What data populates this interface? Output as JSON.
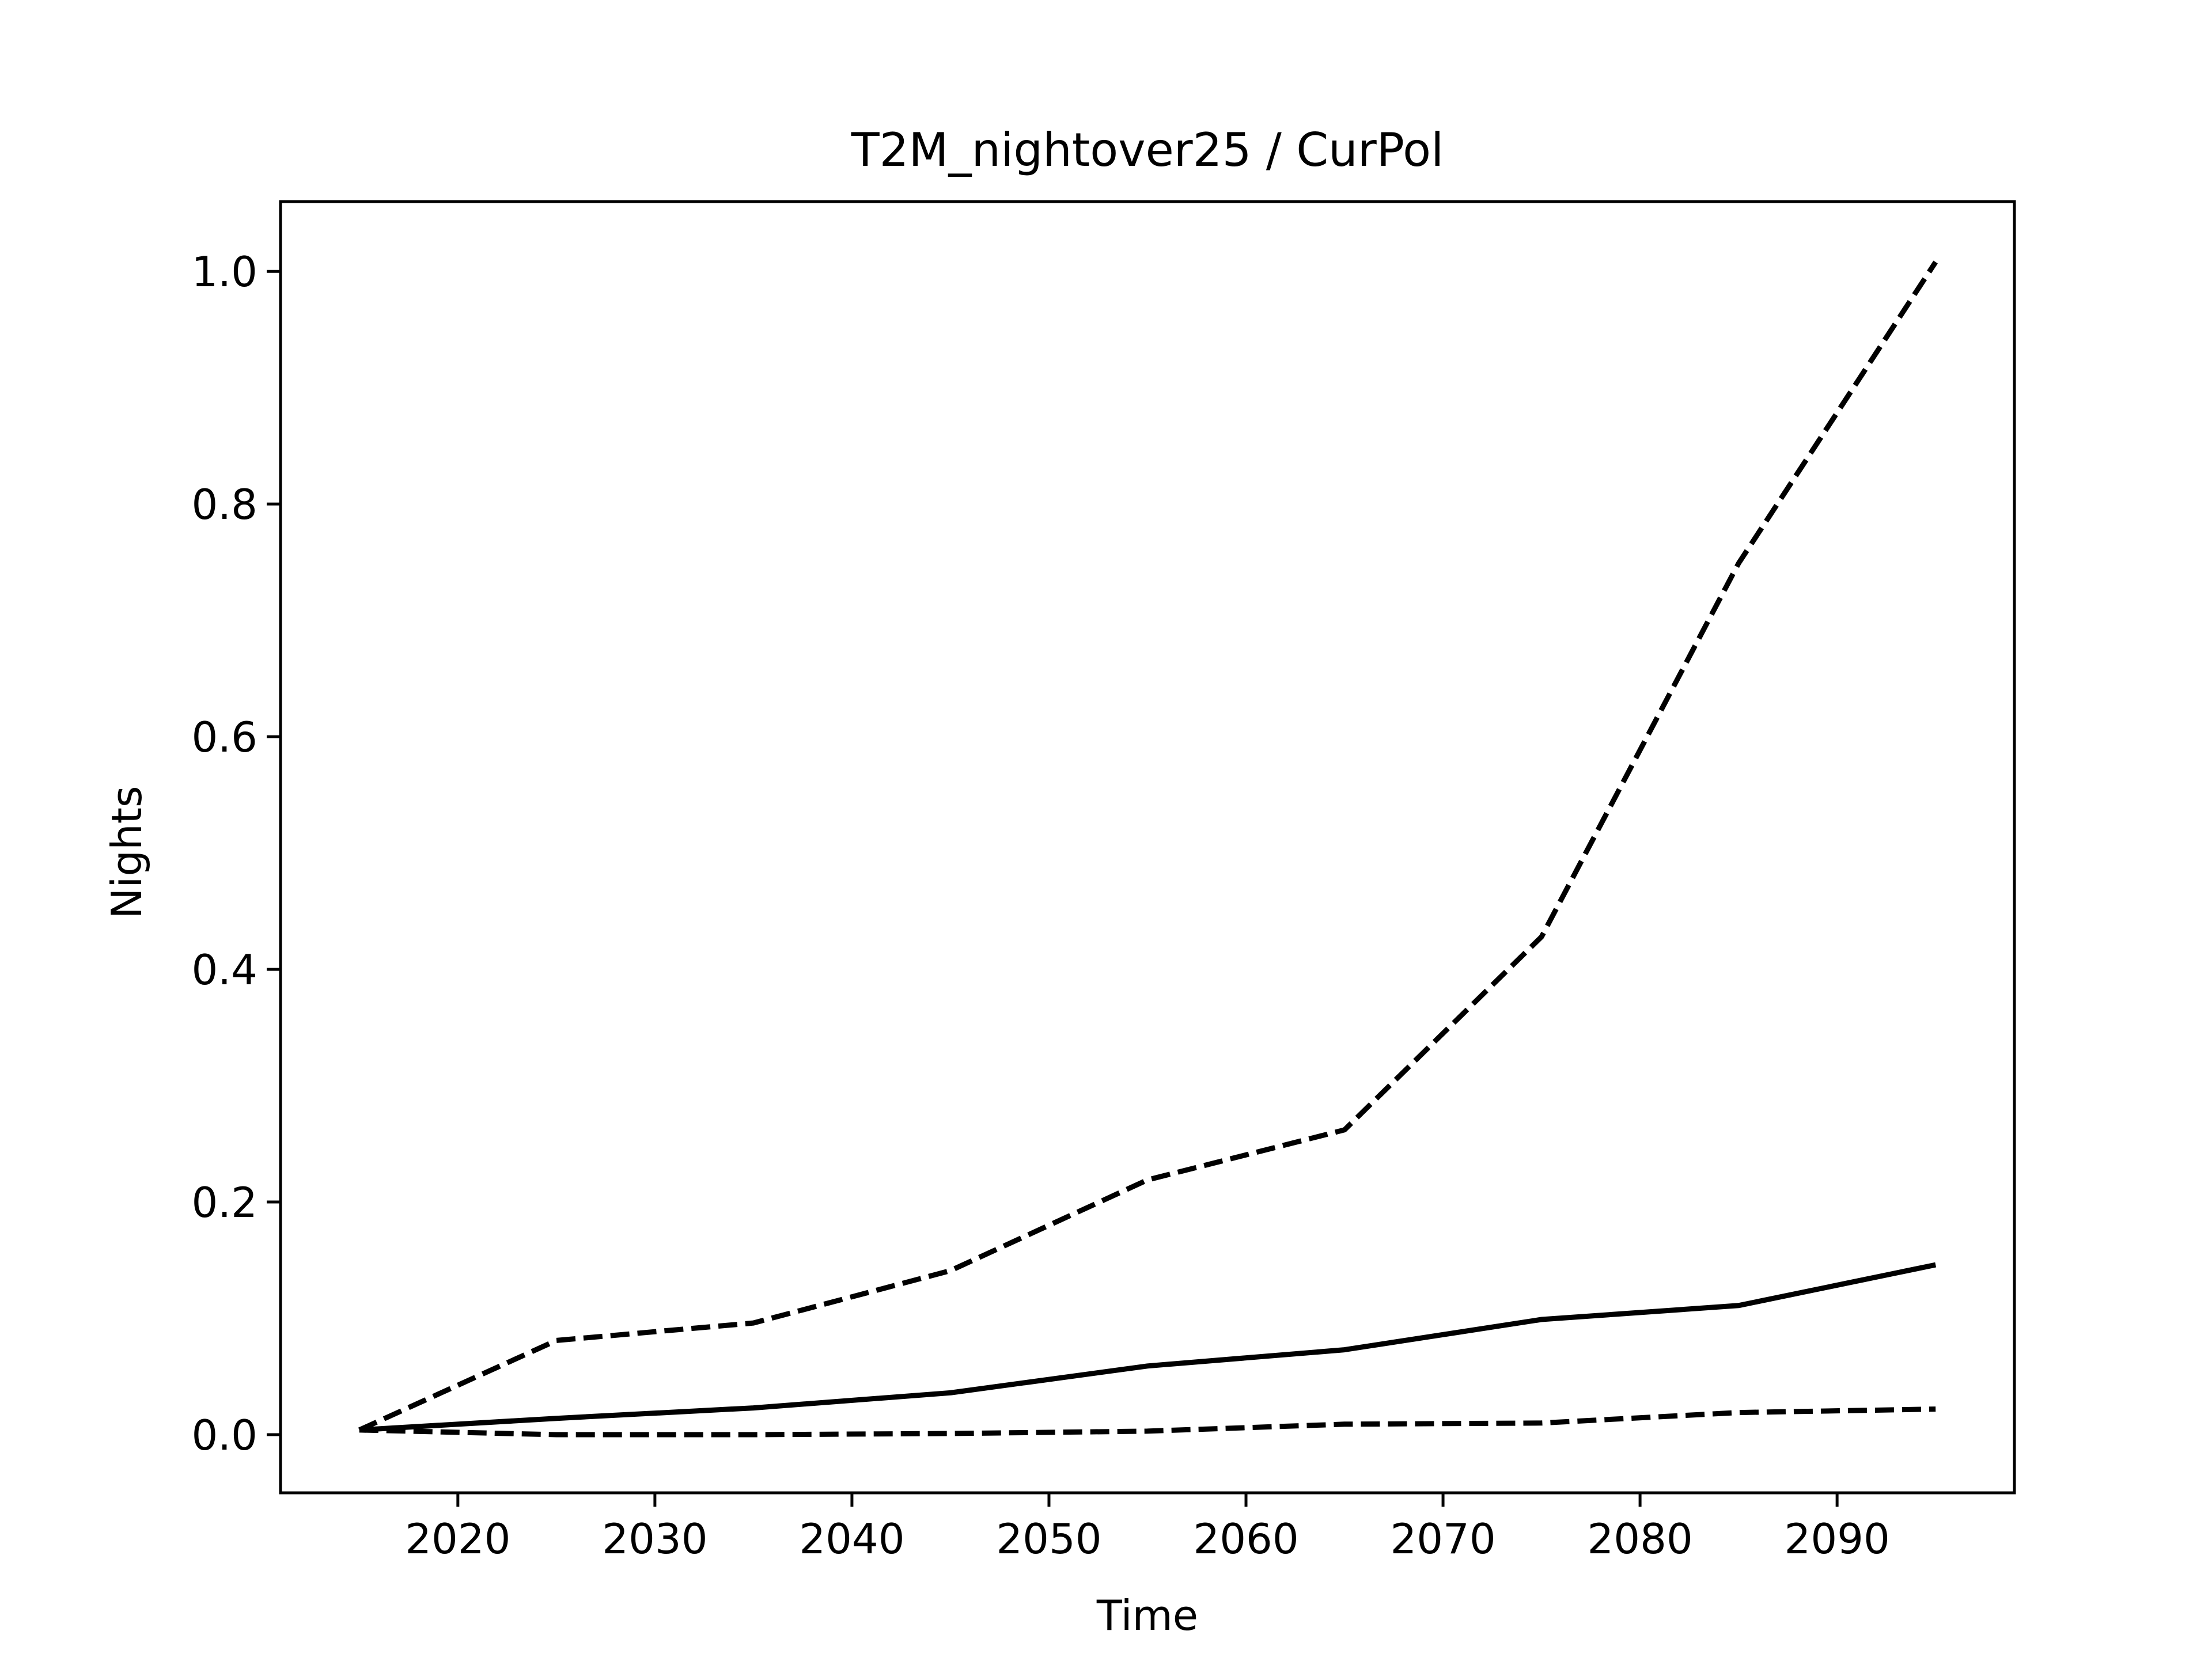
{
  "chart_data": {
    "type": "line",
    "title": "T2M_nightover25 / CurPol",
    "xlabel": "Time",
    "ylabel": "Nights",
    "xlim": [
      2011,
      2099
    ],
    "ylim": [
      -0.05,
      1.06
    ],
    "xticks": [
      2020,
      2030,
      2040,
      2050,
      2060,
      2070,
      2080,
      2090
    ],
    "xtick_labels": [
      "2020",
      "2030",
      "2040",
      "2050",
      "2060",
      "2070",
      "2080",
      "2090"
    ],
    "yticks": [
      0.0,
      0.2,
      0.4,
      0.6,
      0.8,
      1.0
    ],
    "ytick_labels": [
      "0.0",
      "0.2",
      "0.4",
      "0.6",
      "0.8",
      "1.0"
    ],
    "grid": false,
    "x": [
      2015,
      2025,
      2035,
      2045,
      2055,
      2065,
      2075,
      2085,
      2095
    ],
    "series": [
      {
        "style": "dashed",
        "color": "#000000",
        "values": [
          0.004,
          0.081,
          0.096,
          0.141,
          0.219,
          0.262,
          0.428,
          0.749,
          1.008
        ]
      },
      {
        "style": "solid",
        "color": "#000000",
        "values": [
          0.004,
          0.014,
          0.023,
          0.036,
          0.059,
          0.073,
          0.099,
          0.111,
          0.146
        ]
      },
      {
        "style": "dashed",
        "color": "#000000",
        "values": [
          0.004,
          0.0,
          0.0,
          0.001,
          0.003,
          0.009,
          0.01,
          0.019,
          0.022
        ]
      }
    ]
  }
}
